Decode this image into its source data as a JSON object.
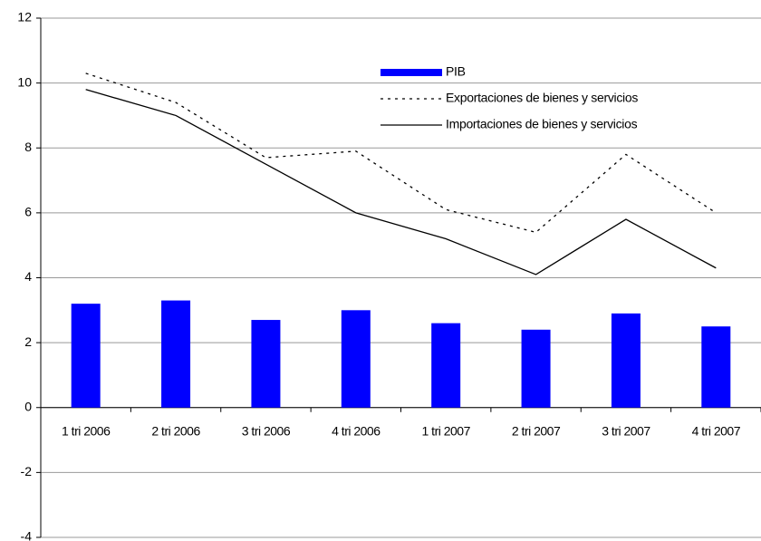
{
  "chart_data": {
    "type": "bar",
    "categories": [
      "1 tri 2006",
      "2 tri 2006",
      "3 tri 2006",
      "4 tri 2006",
      "1 tri 2007",
      "2 tri 2007",
      "3 tri 2007",
      "4 tri 2007"
    ],
    "series": [
      {
        "name": "PIB",
        "type": "bar",
        "color": "#0000ff",
        "values": [
          3.2,
          3.3,
          2.7,
          3.0,
          2.6,
          2.4,
          2.9,
          2.5
        ]
      },
      {
        "name": "Exportaciones de bienes y servicios",
        "type": "line",
        "line_style": "dotted",
        "color": "#000000",
        "values": [
          10.3,
          9.4,
          7.7,
          7.9,
          6.1,
          5.4,
          7.8,
          6.0
        ]
      },
      {
        "name": "Importaciones de bienes y servicios",
        "type": "line",
        "line_style": "solid",
        "color": "#000000",
        "values": [
          9.8,
          9.0,
          7.5,
          6.0,
          5.2,
          4.1,
          5.8,
          4.3
        ]
      }
    ],
    "ylim": [
      -4,
      12
    ],
    "yticks": [
      -4,
      -2,
      0,
      2,
      4,
      6,
      8,
      10,
      12
    ],
    "grid": true,
    "legend": "top-right"
  }
}
